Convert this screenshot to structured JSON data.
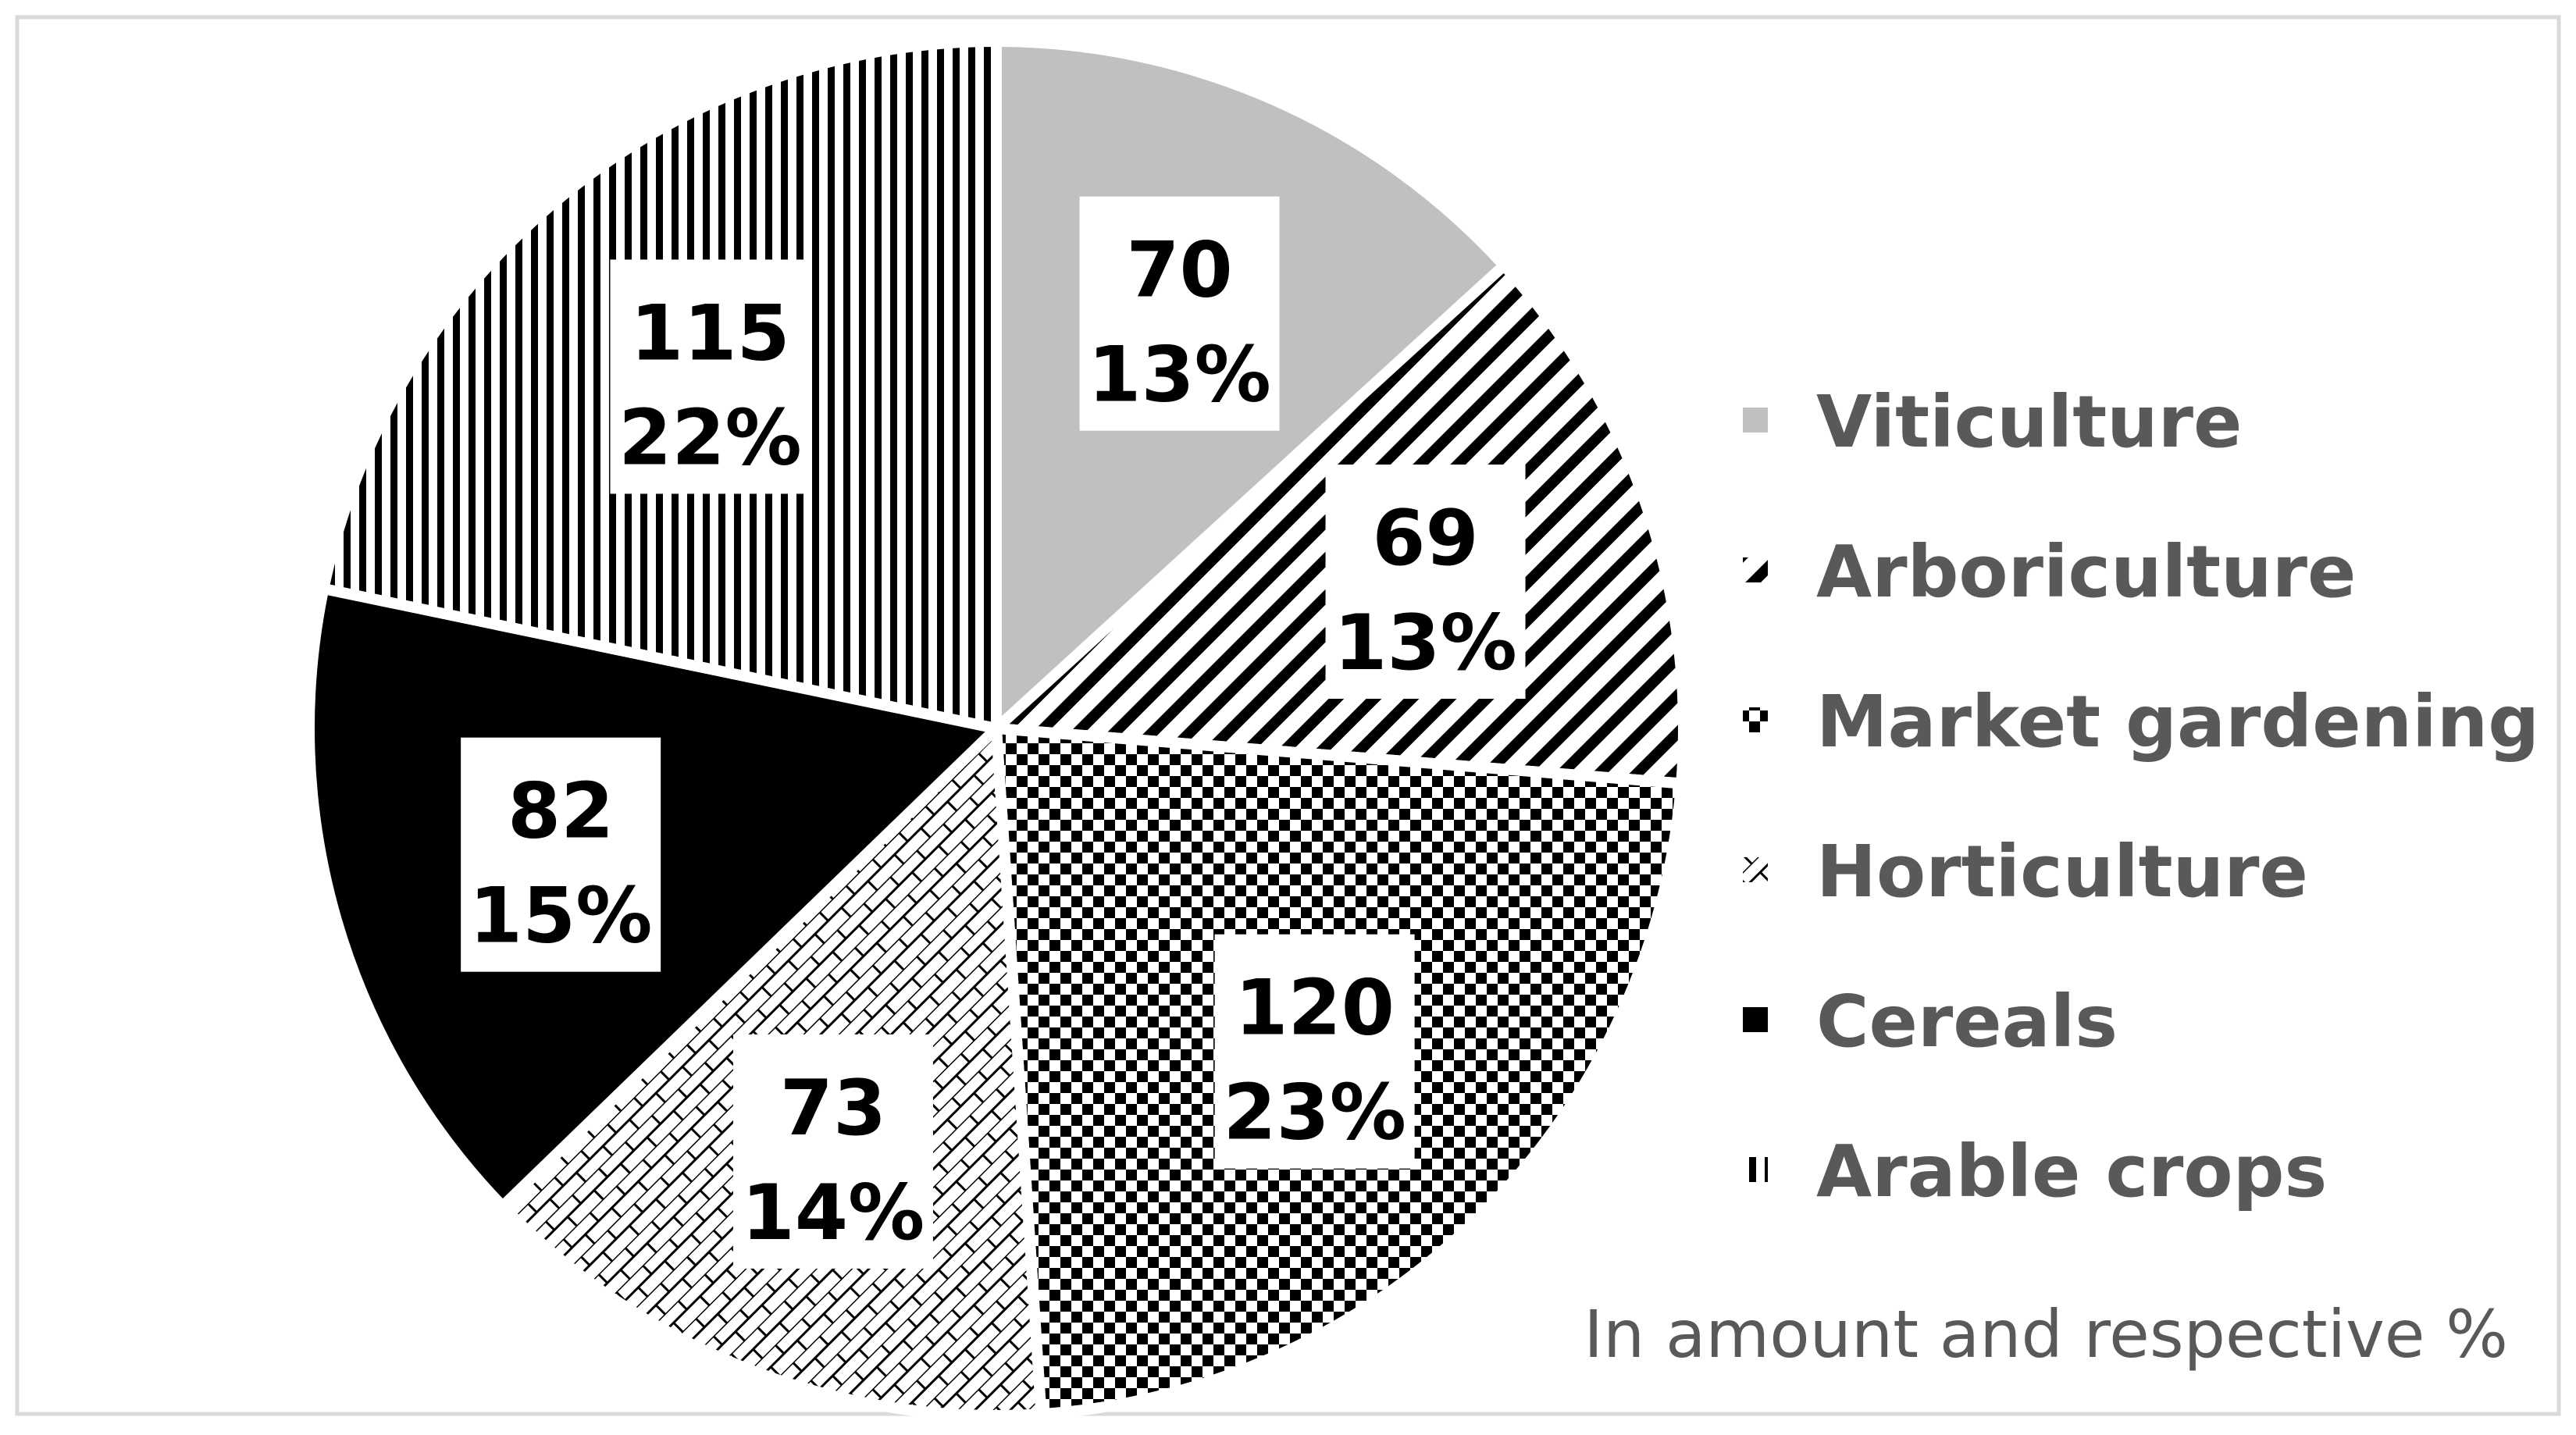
{
  "chart_data": {
    "type": "pie",
    "note": "In amount and respective %",
    "legend_position": "right",
    "slices": [
      {
        "label": "Viticulture",
        "value": 70,
        "percent": "13%",
        "fill": "#c0c0c0",
        "pattern": "solid-gray"
      },
      {
        "label": "Arboriculture",
        "value": 69,
        "percent": "13%",
        "fill": "#000000",
        "pattern": "diagonal-hatch"
      },
      {
        "label": "Market gardening",
        "value": 120,
        "percent": "23%",
        "fill": "#000000",
        "pattern": "checkerboard"
      },
      {
        "label": "Horticulture",
        "value": 73,
        "percent": "14%",
        "fill": "#000000",
        "pattern": "brick"
      },
      {
        "label": "Cereals",
        "value": 82,
        "percent": "15%",
        "fill": "#000000",
        "pattern": "solid-black"
      },
      {
        "label": "Arable crops",
        "value": 115,
        "percent": "22%",
        "fill": "#000000",
        "pattern": "vertical-stripes"
      }
    ],
    "colors": {
      "frame": "#d9d9d9",
      "legend_text": "#595959",
      "label_text": "#000000"
    }
  }
}
